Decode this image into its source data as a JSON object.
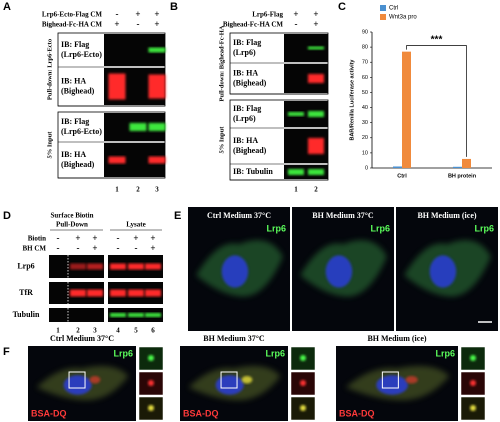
{
  "panel_labels": [
    "A",
    "B",
    "C",
    "D",
    "E",
    "F"
  ],
  "panel_a": {
    "conditions": [
      {
        "name": "Lrp6-Ecto-Flag CM",
        "signs": [
          "-",
          "+",
          "+"
        ]
      },
      {
        "name": "Bighead-Fc-HA CM",
        "signs": [
          "+",
          "-",
          "+"
        ]
      }
    ],
    "sections": [
      "Pull-down: Lrp6-Ecto",
      "5% Input"
    ],
    "blots": [
      [
        "IB: Flag",
        "(Lrp6-Ecto)"
      ],
      [
        "IB: HA",
        "(Bighead)"
      ],
      [
        "IB: Flag",
        "(Lrp6-Ecto)"
      ],
      [
        "IB: HA",
        "(Bighead)"
      ]
    ],
    "lanes": [
      "1",
      "2",
      "3"
    ]
  },
  "panel_b": {
    "conditions": [
      {
        "name": "Lrp6-Flag",
        "signs": [
          "+",
          "+"
        ]
      },
      {
        "name": "Bighead-Fc-HA CM",
        "signs": [
          "-",
          "+"
        ]
      }
    ],
    "sections": [
      "Pull-down: Bighead-Fc-HA",
      "5% Input"
    ],
    "blots": [
      [
        "IB: Flag",
        "(Lrp6)"
      ],
      [
        "IB: HA",
        "(Bighead)"
      ],
      [
        "IB: Flag",
        "(Lrp6)"
      ],
      [
        "IB: HA",
        "(Bighead)"
      ],
      [
        "IB: Tubulin"
      ]
    ],
    "lanes": [
      "1",
      "2"
    ]
  },
  "panel_d": {
    "groups": [
      "Surface Biotin",
      "Pull-Down",
      "Lysate"
    ],
    "conditions": [
      {
        "name": "Biotin",
        "signs": [
          "-",
          "+",
          "+",
          "-",
          "+",
          "+"
        ]
      },
      {
        "name": "BH CM",
        "signs": [
          "-",
          "-",
          "+",
          "-",
          "-",
          "+"
        ]
      }
    ],
    "blots": [
      "Lrp6",
      "TfR",
      "Tubulin"
    ],
    "lanes": [
      "1",
      "2",
      "3",
      "4",
      "5",
      "6"
    ]
  },
  "panel_e": {
    "images": [
      "Ctrl Medium 37°C",
      "BH Medium 37°C",
      "BH Medium (ice)"
    ],
    "stain": "Lrp6"
  },
  "panel_f": {
    "images": [
      "Ctrl Medium 37°C",
      "BH Medium 37°C",
      "BH Medium (ice)"
    ],
    "stains": [
      "Lrp6",
      "BSA-DQ"
    ]
  },
  "chart_data": {
    "type": "bar",
    "y_label": "BAR/Renilla Luciferase activity",
    "categories": [
      "Ctrl",
      "BH protein"
    ],
    "series": [
      {
        "name": "Ctrl",
        "color": "#4a90d0",
        "values": [
          1,
          0.8
        ]
      },
      {
        "name": "Wnt3a pro",
        "color": "#f08a3c",
        "values": [
          77,
          6
        ]
      }
    ],
    "ylim": [
      0,
      90
    ],
    "yticks": [
      0,
      10,
      20,
      30,
      40,
      50,
      60,
      70,
      80,
      90
    ],
    "annotation": "***",
    "grid": false,
    "legend": "top-left"
  }
}
